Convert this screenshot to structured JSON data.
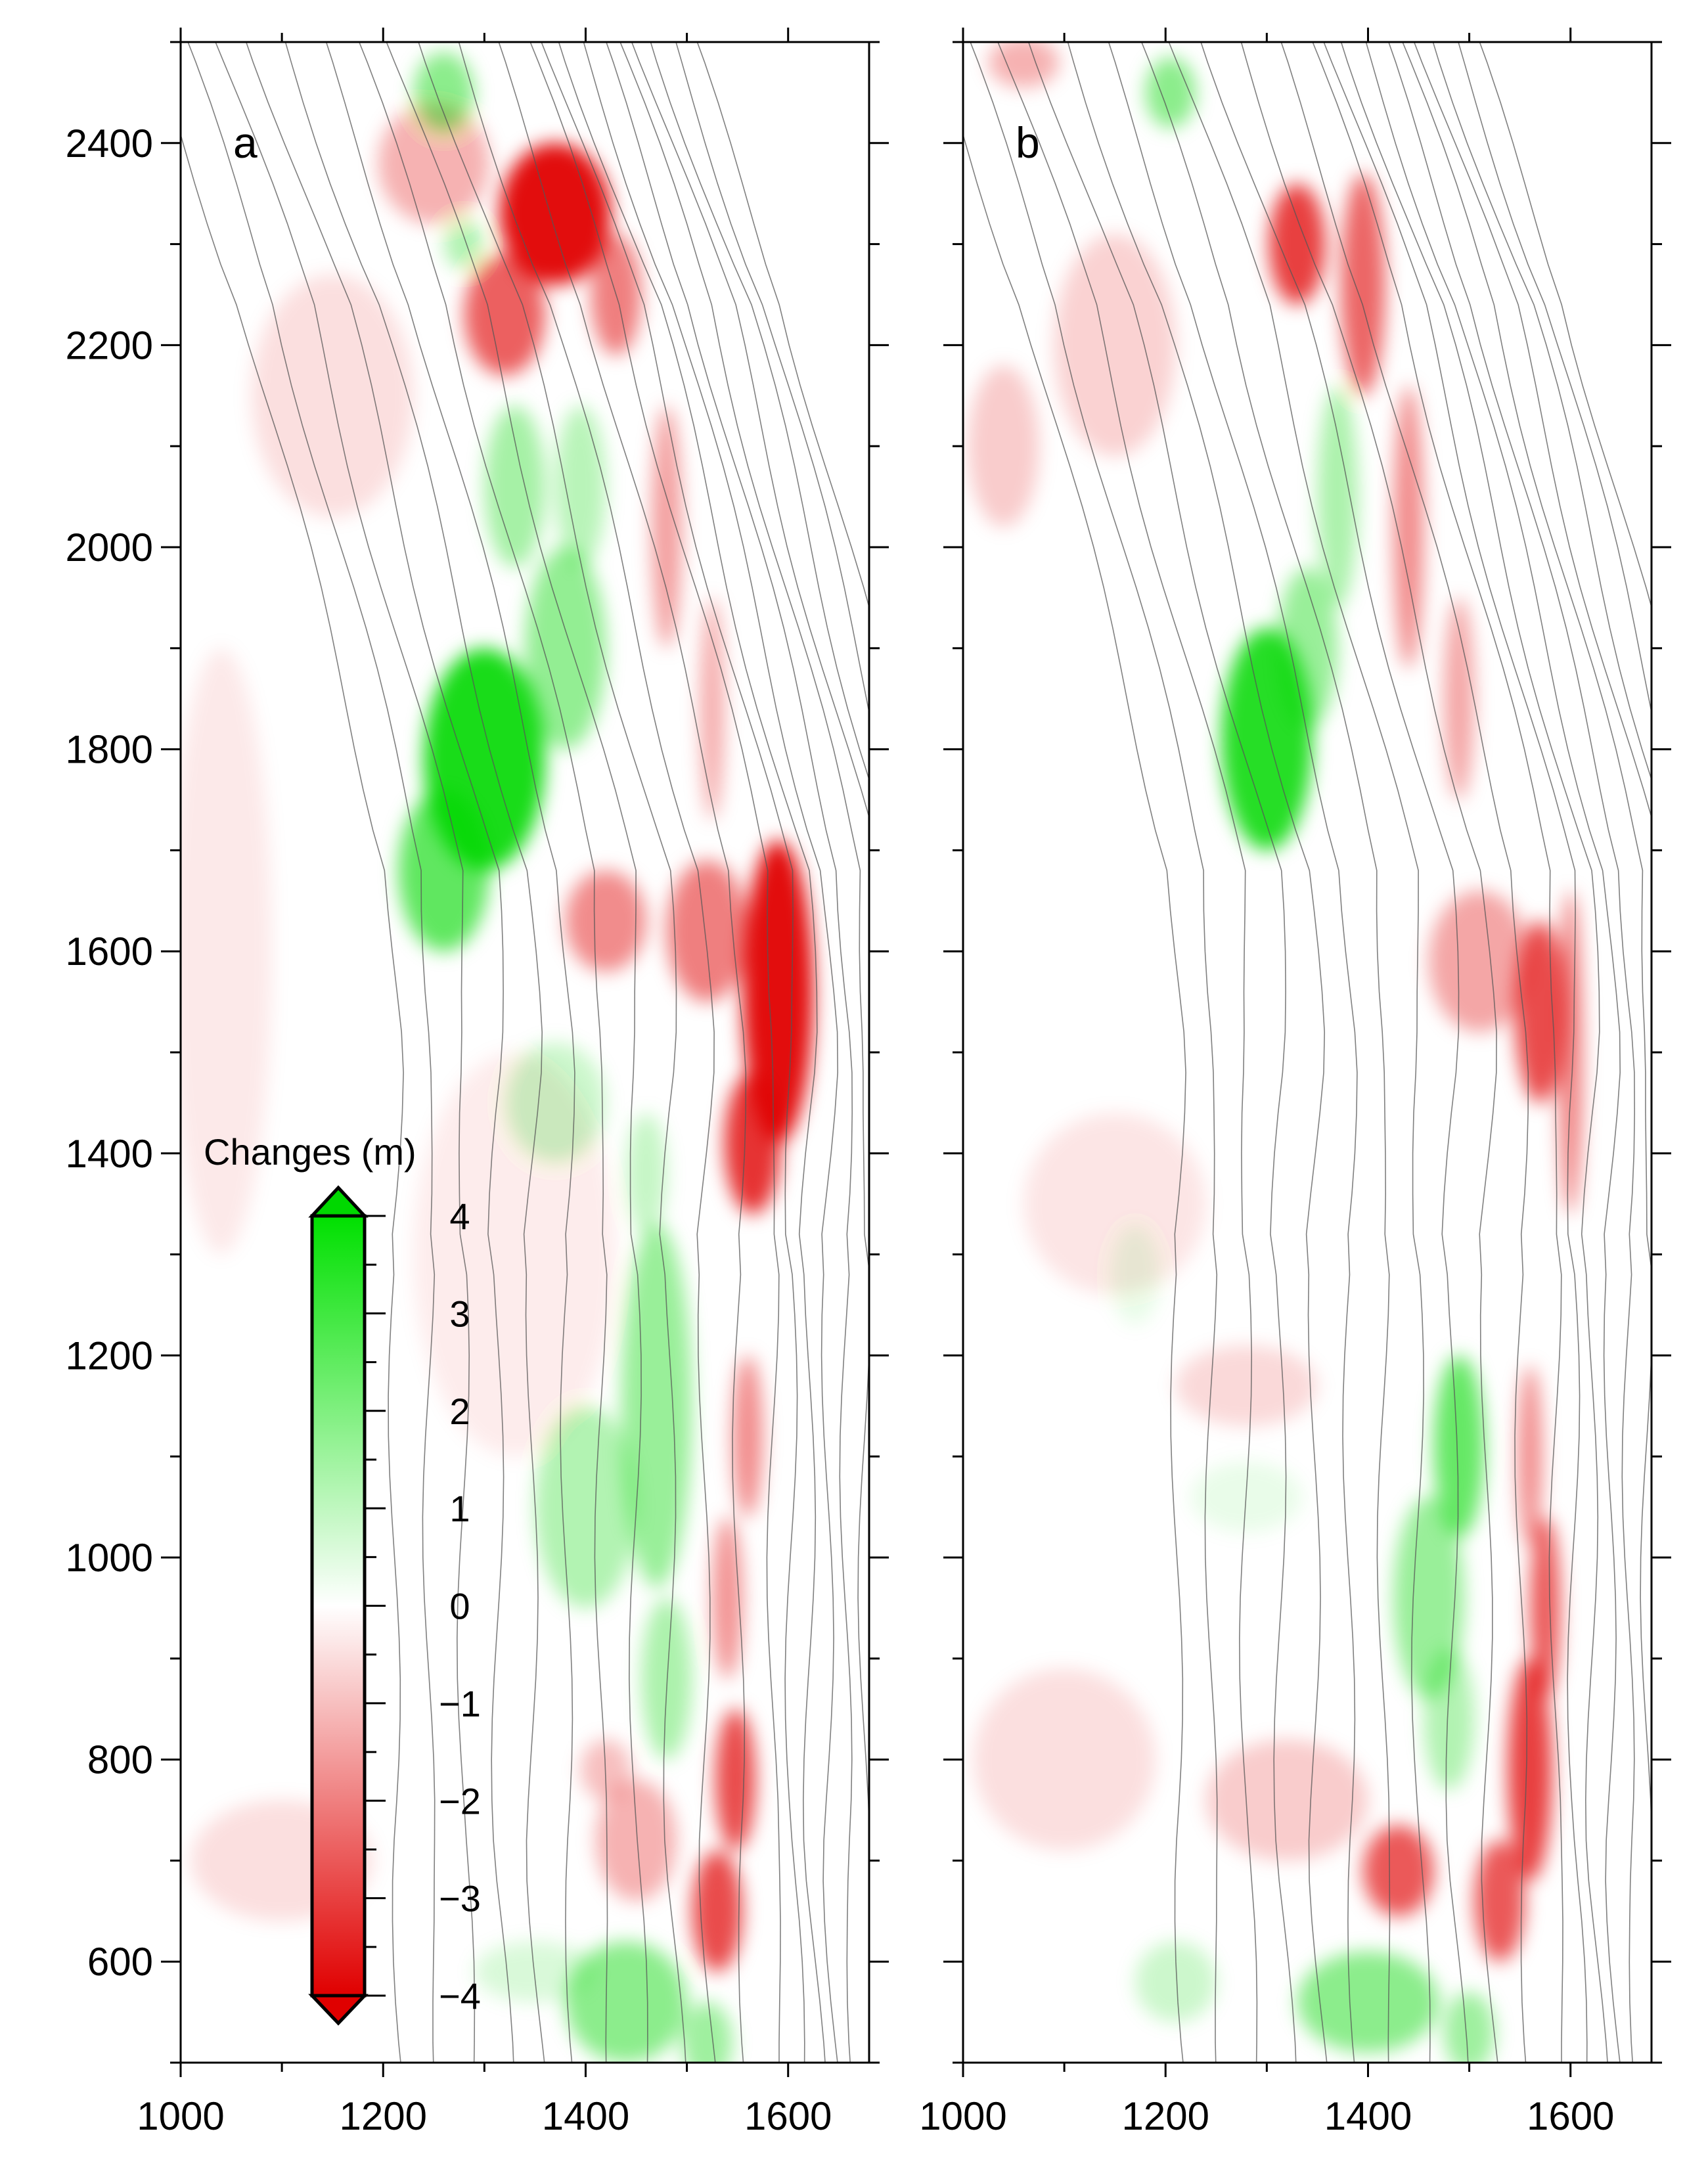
{
  "chart_data": [
    {
      "type": "heatmap",
      "panel_label": "a",
      "x_ticks": [
        1000,
        1200,
        1400,
        1600
      ],
      "y_ticks": [
        600,
        800,
        1000,
        1200,
        1400,
        1600,
        1800,
        2000,
        2200,
        2400
      ],
      "xlim": [
        1000,
        1680
      ],
      "ylim": [
        500,
        2500
      ],
      "grid": false,
      "blobs": [
        {
          "x": 1370,
          "y": 2330,
          "sx": 55,
          "sy": 70,
          "v": -3.8
        },
        {
          "x": 1320,
          "y": 2230,
          "sx": 40,
          "sy": 60,
          "v": -2.5
        },
        {
          "x": 1430,
          "y": 2250,
          "sx": 25,
          "sy": 60,
          "v": -2.0
        },
        {
          "x": 1480,
          "y": 2020,
          "sx": 15,
          "sy": 120,
          "v": -1.5
        },
        {
          "x": 1525,
          "y": 1840,
          "sx": 12,
          "sy": 110,
          "v": -1.3
        },
        {
          "x": 1590,
          "y": 1560,
          "sx": 35,
          "sy": 150,
          "v": -3.8
        },
        {
          "x": 1565,
          "y": 1410,
          "sx": 28,
          "sy": 70,
          "v": -3.2
        },
        {
          "x": 1520,
          "y": 1620,
          "sx": 40,
          "sy": 70,
          "v": -2.0
        },
        {
          "x": 1420,
          "y": 1630,
          "sx": 40,
          "sy": 50,
          "v": -1.8
        },
        {
          "x": 1560,
          "y": 1120,
          "sx": 15,
          "sy": 80,
          "v": -1.8
        },
        {
          "x": 1540,
          "y": 960,
          "sx": 15,
          "sy": 80,
          "v": -1.7
        },
        {
          "x": 1548,
          "y": 780,
          "sx": 20,
          "sy": 70,
          "v": -2.8
        },
        {
          "x": 1530,
          "y": 650,
          "sx": 25,
          "sy": 60,
          "v": -2.8
        },
        {
          "x": 1450,
          "y": 720,
          "sx": 40,
          "sy": 60,
          "v": -1.2
        },
        {
          "x": 1420,
          "y": 790,
          "sx": 25,
          "sy": 30,
          "v": -1.0
        },
        {
          "x": 1250,
          "y": 2380,
          "sx": 55,
          "sy": 60,
          "v": -1.2
        },
        {
          "x": 1150,
          "y": 2150,
          "sx": 80,
          "sy": 120,
          "v": -0.5
        },
        {
          "x": 1100,
          "y": 700,
          "sx": 90,
          "sy": 60,
          "v": -0.5
        },
        {
          "x": 1040,
          "y": 1600,
          "sx": 50,
          "sy": 300,
          "v": -0.35
        },
        {
          "x": 1330,
          "y": 1300,
          "sx": 100,
          "sy": 200,
          "v": -0.3
        },
        {
          "x": 1300,
          "y": 1790,
          "sx": 60,
          "sy": 110,
          "v": 3.6
        },
        {
          "x": 1260,
          "y": 1680,
          "sx": 45,
          "sy": 80,
          "v": 2.5
        },
        {
          "x": 1380,
          "y": 1900,
          "sx": 40,
          "sy": 100,
          "v": 1.7
        },
        {
          "x": 1330,
          "y": 2060,
          "sx": 30,
          "sy": 80,
          "v": 1.4
        },
        {
          "x": 1395,
          "y": 2060,
          "sx": 25,
          "sy": 80,
          "v": 1.1
        },
        {
          "x": 1260,
          "y": 2450,
          "sx": 30,
          "sy": 40,
          "v": 1.8
        },
        {
          "x": 1280,
          "y": 2300,
          "sx": 20,
          "sy": 25,
          "v": 1.2
        },
        {
          "x": 1470,
          "y": 1150,
          "sx": 35,
          "sy": 180,
          "v": 1.6
        },
        {
          "x": 1400,
          "y": 1050,
          "sx": 50,
          "sy": 100,
          "v": 1.2
        },
        {
          "x": 1480,
          "y": 880,
          "sx": 25,
          "sy": 80,
          "v": 1.3
        },
        {
          "x": 1440,
          "y": 560,
          "sx": 60,
          "sy": 60,
          "v": 1.8
        },
        {
          "x": 1520,
          "y": 520,
          "sx": 25,
          "sy": 40,
          "v": 1.5
        },
        {
          "x": 1370,
          "y": 1450,
          "sx": 50,
          "sy": 60,
          "v": 0.8
        },
        {
          "x": 1460,
          "y": 1380,
          "sx": 20,
          "sy": 60,
          "v": 0.9
        },
        {
          "x": 1350,
          "y": 590,
          "sx": 60,
          "sy": 30,
          "v": 0.6
        }
      ]
    },
    {
      "type": "heatmap",
      "panel_label": "b",
      "x_ticks": [
        1000,
        1200,
        1400,
        1600
      ],
      "y_ticks": [
        600,
        800,
        1000,
        1200,
        1400,
        1600,
        1800,
        2000,
        2200,
        2400
      ],
      "xlim": [
        1000,
        1680
      ],
      "ylim": [
        500,
        2500
      ],
      "grid": false,
      "blobs": [
        {
          "x": 1330,
          "y": 2300,
          "sx": 28,
          "sy": 60,
          "v": -3.0
        },
        {
          "x": 1395,
          "y": 2260,
          "sx": 22,
          "sy": 110,
          "v": -2.4
        },
        {
          "x": 1440,
          "y": 2020,
          "sx": 15,
          "sy": 140,
          "v": -1.8
        },
        {
          "x": 1490,
          "y": 1850,
          "sx": 15,
          "sy": 100,
          "v": -1.4
        },
        {
          "x": 1570,
          "y": 1540,
          "sx": 25,
          "sy": 90,
          "v": -2.8
        },
        {
          "x": 1600,
          "y": 1500,
          "sx": 12,
          "sy": 160,
          "v": -2.0
        },
        {
          "x": 1510,
          "y": 1590,
          "sx": 50,
          "sy": 70,
          "v": -1.4
        },
        {
          "x": 1560,
          "y": 1100,
          "sx": 12,
          "sy": 90,
          "v": -1.8
        },
        {
          "x": 1575,
          "y": 950,
          "sx": 15,
          "sy": 90,
          "v": -2.6
        },
        {
          "x": 1560,
          "y": 790,
          "sx": 22,
          "sy": 110,
          "v": -3.0
        },
        {
          "x": 1530,
          "y": 660,
          "sx": 25,
          "sy": 60,
          "v": -2.6
        },
        {
          "x": 1430,
          "y": 690,
          "sx": 35,
          "sy": 45,
          "v": -2.6
        },
        {
          "x": 1320,
          "y": 760,
          "sx": 80,
          "sy": 60,
          "v": -0.8
        },
        {
          "x": 1100,
          "y": 800,
          "sx": 90,
          "sy": 90,
          "v": -0.5
        },
        {
          "x": 1150,
          "y": 2200,
          "sx": 60,
          "sy": 110,
          "v": -0.7
        },
        {
          "x": 1040,
          "y": 2100,
          "sx": 35,
          "sy": 80,
          "v": -0.8
        },
        {
          "x": 1060,
          "y": 2480,
          "sx": 35,
          "sy": 25,
          "v": -1.2
        },
        {
          "x": 1150,
          "y": 1350,
          "sx": 90,
          "sy": 90,
          "v": -0.4
        },
        {
          "x": 1280,
          "y": 1170,
          "sx": 70,
          "sy": 40,
          "v": -0.6
        },
        {
          "x": 1300,
          "y": 1810,
          "sx": 45,
          "sy": 110,
          "v": 3.4
        },
        {
          "x": 1340,
          "y": 1900,
          "sx": 30,
          "sy": 80,
          "v": 1.6
        },
        {
          "x": 1370,
          "y": 2050,
          "sx": 20,
          "sy": 110,
          "v": 1.3
        },
        {
          "x": 1205,
          "y": 2450,
          "sx": 25,
          "sy": 35,
          "v": 1.8
        },
        {
          "x": 1490,
          "y": 1110,
          "sx": 25,
          "sy": 90,
          "v": 2.4
        },
        {
          "x": 1460,
          "y": 960,
          "sx": 35,
          "sy": 100,
          "v": 1.6
        },
        {
          "x": 1480,
          "y": 840,
          "sx": 25,
          "sy": 70,
          "v": 1.2
        },
        {
          "x": 1400,
          "y": 560,
          "sx": 70,
          "sy": 50,
          "v": 1.8
        },
        {
          "x": 1500,
          "y": 530,
          "sx": 25,
          "sy": 40,
          "v": 1.5
        },
        {
          "x": 1210,
          "y": 580,
          "sx": 40,
          "sy": 40,
          "v": 0.8
        },
        {
          "x": 1170,
          "y": 1280,
          "sx": 25,
          "sy": 50,
          "v": 0.35
        },
        {
          "x": 1280,
          "y": 1060,
          "sx": 55,
          "sy": 35,
          "v": 0.35
        }
      ]
    }
  ],
  "colorbar": {
    "title": "Changes (m)",
    "ticks": [
      4,
      3,
      2,
      1,
      0,
      -1,
      -2,
      -3,
      -4
    ],
    "tick_labels": [
      "4",
      "3",
      "2",
      "1",
      "0",
      "−1",
      "−2",
      "−3",
      "−4"
    ],
    "range": [
      -4,
      4
    ],
    "colors": {
      "positive": "#00d800",
      "zero": "#ffffff",
      "negative": "#e00000"
    }
  }
}
